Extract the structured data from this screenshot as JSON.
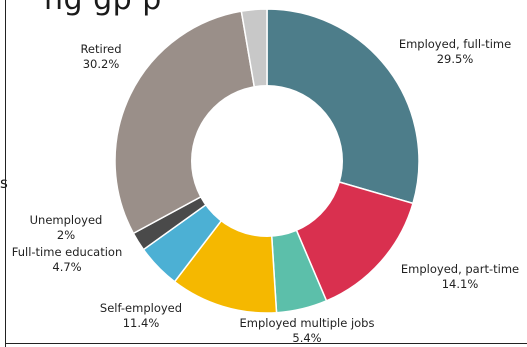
{
  "header": {
    "title_fragment": "ng gp p",
    "stray_mark": "s"
  },
  "chart_data": {
    "type": "donut",
    "title": "",
    "categories": [
      "Employed, full-time",
      "Employed, part-time",
      "Employed multiple jobs",
      "Self-employed",
      "Full-time education",
      "Unemployed",
      "Retired",
      ""
    ],
    "values": [
      29.5,
      14.1,
      5.4,
      11.4,
      4.7,
      2,
      30.2,
      2.7
    ],
    "value_labels": [
      "29.5%",
      "14.1%",
      "5.4%",
      "11.4%",
      "4.7%",
      "2%",
      "30.2%",
      ""
    ],
    "colors": [
      "#4d7d8a",
      "#d9304f",
      "#5cbfaa",
      "#f5b800",
      "#4cb0d4",
      "#4a4a4a",
      "#9a8f89",
      "#c8c8c8"
    ],
    "start_angle_deg": 0,
    "direction": "clockwise",
    "hole_ratio": 0.5,
    "legend": "none"
  }
}
